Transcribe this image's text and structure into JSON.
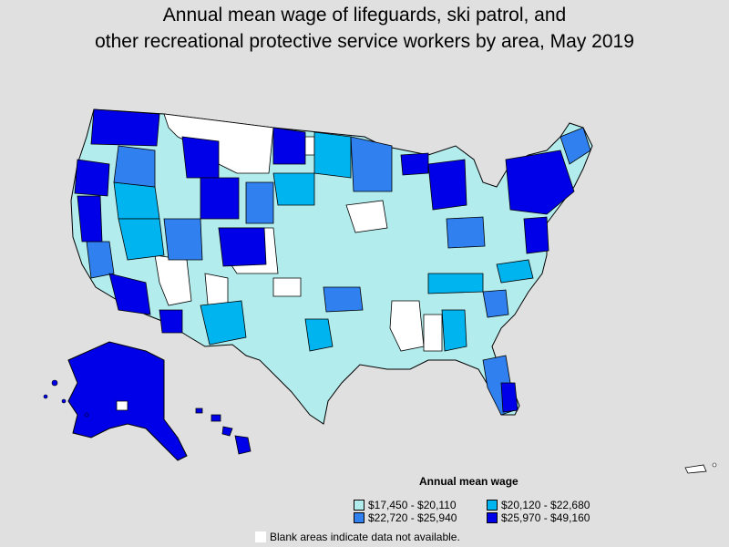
{
  "title_line1": "Annual mean wage of lifeguards, ski patrol, and",
  "title_line2": "other recreational protective service workers by area, May 2019",
  "legend": {
    "title": "Annual mean wage",
    "items": [
      {
        "label": "$17,450 - $20,110",
        "color": "#b3eced"
      },
      {
        "label": "$20,120 - $22,680",
        "color": "#00b4f0"
      },
      {
        "label": "$22,720 - $25,940",
        "color": "#3080f0"
      },
      {
        "label": "$25,970 - $49,160",
        "color": "#0000e8"
      }
    ]
  },
  "note": "Blank areas indicate data not available.",
  "colors": {
    "background": "#e0e0e0",
    "blank": "#ffffff",
    "border": "#000000"
  }
}
